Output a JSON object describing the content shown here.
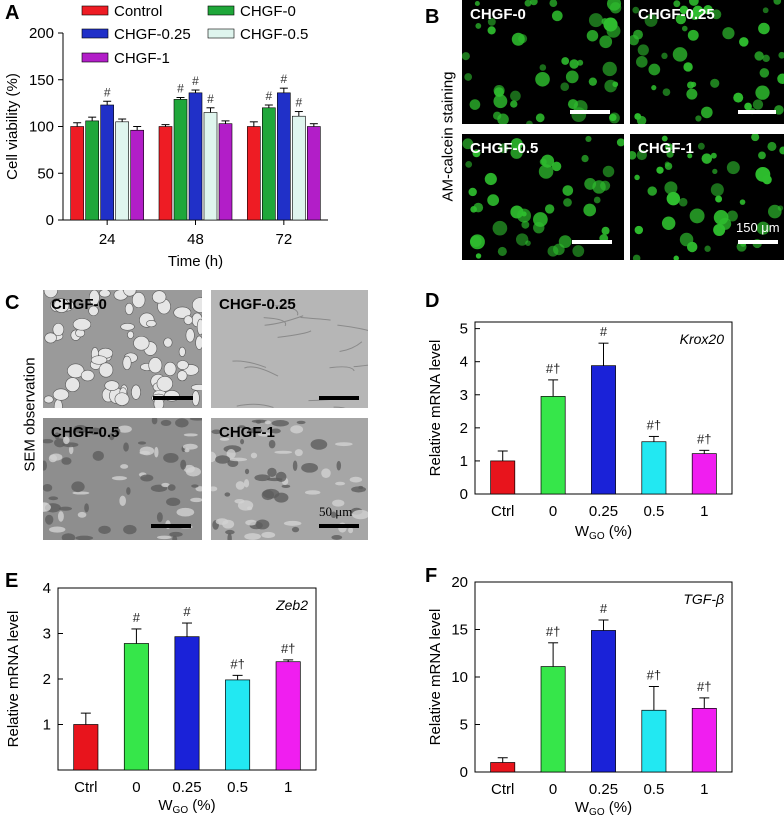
{
  "panel_labels": {
    "A": "A",
    "B": "B",
    "C": "C",
    "D": "D",
    "E": "E",
    "F": "F"
  },
  "colors": {
    "Control": "#ee1c24",
    "CHGF-0": "#1fa73a",
    "CHGF-0.25": "#2030c8",
    "CHGF-0.5": "#dff5ee",
    "CHGF-1": "#b21ec8",
    "ctrl_bar": "#e8141c",
    "bar_0": "#36e64a",
    "bar_025": "#1a22d8",
    "bar_05": "#22e8f2",
    "bar_1": "#f01ef0"
  },
  "panel_b": {
    "side_label": "AM-calcein staining",
    "images": [
      "CHGF-0",
      "CHGF-0.25",
      "CHGF-0.5",
      "CHGF-1"
    ],
    "scale_text": "150 μm"
  },
  "panel_c": {
    "side_label": "SEM observation",
    "images": [
      "CHGF-0",
      "CHGF-0.25",
      "CHGF-0.5",
      "CHGF-1"
    ],
    "scale_text": "50 μm"
  },
  "chart_data": [
    {
      "id": "A",
      "type": "bar",
      "xlabel": "Time (h)",
      "ylabel": "Cell viability (%)",
      "ylim": [
        0,
        200
      ],
      "yticks": [
        0,
        50,
        100,
        150,
        200
      ],
      "categories": [
        "24",
        "48",
        "72"
      ],
      "legend": [
        "Control",
        "CHGF-0",
        "CHGF-0.25",
        "CHGF-0.5",
        "CHGF-1"
      ],
      "series": [
        {
          "name": "Control",
          "values": [
            100,
            100,
            100
          ],
          "errors": [
            4,
            2,
            5
          ],
          "marks": [
            "",
            "",
            ""
          ]
        },
        {
          "name": "CHGF-0",
          "values": [
            106,
            129,
            120
          ],
          "errors": [
            4,
            2,
            3
          ],
          "marks": [
            "",
            "#",
            "#"
          ]
        },
        {
          "name": "CHGF-0.25",
          "values": [
            123,
            136,
            136
          ],
          "errors": [
            4,
            3,
            5
          ],
          "marks": [
            "#",
            "#",
            "#"
          ]
        },
        {
          "name": "CHGF-0.5",
          "values": [
            105,
            115,
            111
          ],
          "errors": [
            3,
            5,
            5
          ],
          "marks": [
            "",
            "#",
            "#"
          ]
        },
        {
          "name": "CHGF-1",
          "values": [
            96,
            103,
            100
          ],
          "errors": [
            4,
            3,
            3
          ],
          "marks": [
            "",
            "",
            ""
          ]
        }
      ]
    },
    {
      "id": "D",
      "type": "bar",
      "title": "Krox20",
      "ylabel": "Relative mRNA level",
      "xlabel_main": "W",
      "xlabel_sub": "GO",
      "xlabel_tail": " (%)",
      "ylim": [
        0,
        5.2
      ],
      "yticks": [
        0,
        1,
        2,
        3,
        4,
        5
      ],
      "categories": [
        "Ctrl",
        "0",
        "0.25",
        "0.5",
        "1"
      ],
      "values": [
        1.0,
        2.95,
        3.88,
        1.58,
        1.22
      ],
      "errors": [
        0.3,
        0.5,
        0.68,
        0.16,
        0.1
      ],
      "marks": [
        "",
        "#†",
        "#",
        "#†",
        "#†"
      ]
    },
    {
      "id": "E",
      "type": "bar",
      "title": "Zeb2",
      "ylabel": "Relative mRNA level",
      "xlabel_main": "W",
      "xlabel_sub": "GO",
      "xlabel_tail": " (%)",
      "ylim": [
        0,
        4
      ],
      "yticks": [
        1,
        2,
        3,
        4
      ],
      "categories": [
        "Ctrl",
        "0",
        "0.25",
        "0.5",
        "1"
      ],
      "values": [
        1.0,
        2.78,
        2.93,
        1.98,
        2.38
      ],
      "errors": [
        0.25,
        0.32,
        0.3,
        0.1,
        0.04
      ],
      "marks": [
        "",
        "#",
        "#",
        "#†",
        "#†"
      ]
    },
    {
      "id": "F",
      "type": "bar",
      "title": "TGF-β",
      "ylabel": "Relative mRNA level",
      "xlabel_main": "W",
      "xlabel_sub": "GO",
      "xlabel_tail": " (%)",
      "ylim": [
        0,
        20
      ],
      "yticks": [
        0,
        5,
        10,
        15,
        20
      ],
      "categories": [
        "Ctrl",
        "0",
        "0.25",
        "0.5",
        "1"
      ],
      "values": [
        1.0,
        11.1,
        14.9,
        6.5,
        6.7
      ],
      "errors": [
        0.5,
        2.5,
        1.1,
        2.5,
        1.1
      ],
      "marks": [
        "",
        "#†",
        "#",
        "#†",
        "#†"
      ]
    }
  ]
}
